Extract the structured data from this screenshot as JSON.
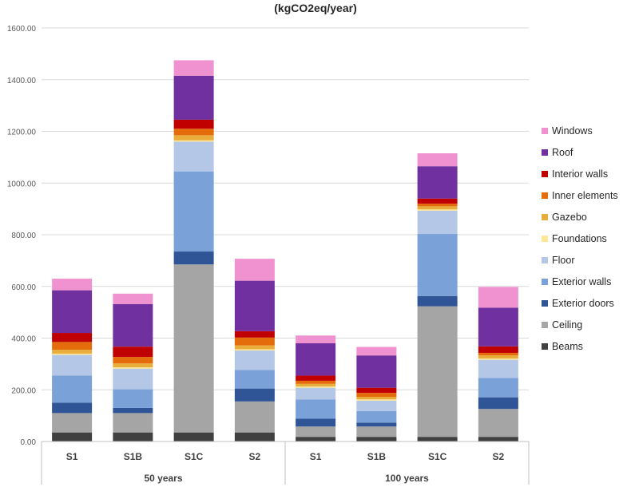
{
  "chart_data": {
    "type": "bar",
    "stacked": true,
    "title": "(kgCO2eq/year)",
    "xlabel": "",
    "ylabel": "",
    "ylim": [
      0,
      1600
    ],
    "y_ticks": [
      "0.00",
      "200.00",
      "400.00",
      "600.00",
      "800.00",
      "1000.00",
      "1200.00",
      "1400.00",
      "1600.00"
    ],
    "grid": true,
    "legend_position": "right",
    "groups": [
      "50 years",
      "100 years"
    ],
    "categories": [
      "S1",
      "S1B",
      "S1C",
      "S2",
      "S1",
      "S1B",
      "S1C",
      "S2"
    ],
    "series": [
      {
        "name": "Beams",
        "color": "#404040",
        "values": [
          35,
          35,
          35,
          35,
          18,
          18,
          18,
          18
        ]
      },
      {
        "name": "Ceiling",
        "color": "#a5a5a5",
        "values": [
          75,
          75,
          650,
          120,
          40,
          40,
          505,
          108
        ]
      },
      {
        "name": "Exterior doors",
        "color": "#2f5597",
        "values": [
          40,
          20,
          50,
          50,
          30,
          15,
          40,
          45
        ]
      },
      {
        "name": "Exterior walls",
        "color": "#7aa1d8",
        "values": [
          105,
          72,
          310,
          72,
          75,
          45,
          240,
          75
        ]
      },
      {
        "name": "Floor",
        "color": "#b4c7e7",
        "values": [
          80,
          80,
          115,
          75,
          45,
          40,
          90,
          70
        ]
      },
      {
        "name": "Foundations",
        "color": "#ffe699",
        "values": [
          5,
          5,
          5,
          5,
          5,
          5,
          5,
          5
        ]
      },
      {
        "name": "Gazebo",
        "color": "#e9ad3c",
        "values": [
          15,
          15,
          20,
          15,
          10,
          10,
          12,
          12
        ]
      },
      {
        "name": "Inner elements",
        "color": "#e46c0a",
        "values": [
          30,
          25,
          25,
          30,
          12,
          15,
          10,
          10
        ]
      },
      {
        "name": "Interior walls",
        "color": "#c00000",
        "values": [
          35,
          40,
          35,
          25,
          20,
          20,
          20,
          25
        ]
      },
      {
        "name": "Roof",
        "color": "#7030a0",
        "values": [
          165,
          165,
          170,
          195,
          125,
          125,
          125,
          150
        ]
      },
      {
        "name": "Windows",
        "color": "#f092d0",
        "values": [
          45,
          40,
          60,
          85,
          30,
          33,
          50,
          80
        ]
      }
    ]
  }
}
